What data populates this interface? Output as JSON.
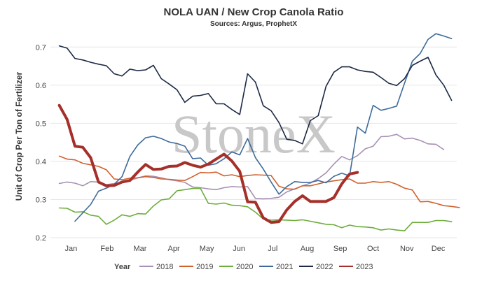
{
  "chart_data": {
    "type": "line",
    "title": "NOLA UAN / New Crop Canola Ratio",
    "subtitle": "Sources: Argus, ProphetX",
    "xlabel": "",
    "ylabel": "Unit of Crop Per Ton of Fertilizer",
    "watermark": "StoneX",
    "legend_title": "Year",
    "legend_position": "bottom",
    "grid": "horizontal",
    "ylim": [
      0.2,
      0.75
    ],
    "yticks": [
      "0.2",
      "0.3",
      "0.4",
      "0.5",
      "0.6",
      "0.7"
    ],
    "xlim": [
      0,
      50
    ],
    "month_ticks": [
      {
        "label": "Jan",
        "x": 2
      },
      {
        "label": "Feb",
        "x": 6.6
      },
      {
        "label": "Mar",
        "x": 10.8
      },
      {
        "label": "Apr",
        "x": 15.1
      },
      {
        "label": "May",
        "x": 19.3
      },
      {
        "label": "Jun",
        "x": 23.4
      },
      {
        "label": "Jul",
        "x": 27.7
      },
      {
        "label": "Aug",
        "x": 32.1
      },
      {
        "label": "Sep",
        "x": 36.3
      },
      {
        "label": "Oct",
        "x": 40.5
      },
      {
        "label": "Nov",
        "x": 44.8
      },
      {
        "label": "Dec",
        "x": 48.8
      }
    ],
    "series": [
      {
        "name": "2018",
        "color": "#a890b4",
        "width": 1.6,
        "points": [
          [
            0.5,
            0.342
          ],
          [
            1.5,
            0.346
          ],
          [
            2.5,
            0.343
          ],
          [
            3.5,
            0.336
          ],
          [
            4.5,
            0.347
          ],
          [
            5.5,
            0.346
          ],
          [
            6.5,
            0.339
          ],
          [
            7.5,
            0.342
          ],
          [
            8.5,
            0.345
          ],
          [
            9.5,
            0.35
          ],
          [
            10.5,
            0.357
          ],
          [
            11.5,
            0.362
          ],
          [
            12.5,
            0.361
          ],
          [
            13.5,
            0.357
          ],
          [
            14.5,
            0.352
          ],
          [
            15.5,
            0.349
          ],
          [
            16.5,
            0.345
          ],
          [
            17.5,
            0.333
          ],
          [
            18.5,
            0.331
          ],
          [
            19.5,
            0.328
          ],
          [
            20.5,
            0.326
          ],
          [
            21.5,
            0.331
          ],
          [
            22.5,
            0.334
          ],
          [
            23.5,
            0.333
          ],
          [
            24.5,
            0.334
          ],
          [
            25.5,
            0.303
          ],
          [
            26.5,
            0.302
          ],
          [
            27.5,
            0.303
          ],
          [
            28.5,
            0.306
          ],
          [
            29.5,
            0.32
          ],
          [
            30.5,
            0.328
          ],
          [
            31.5,
            0.336
          ],
          [
            32.5,
            0.343
          ],
          [
            33.5,
            0.355
          ],
          [
            34.5,
            0.37
          ],
          [
            35.5,
            0.393
          ],
          [
            36.5,
            0.413
          ],
          [
            37.5,
            0.404
          ],
          [
            38.5,
            0.415
          ],
          [
            39.5,
            0.433
          ],
          [
            40.5,
            0.44
          ],
          [
            41.5,
            0.465
          ],
          [
            42.5,
            0.466
          ],
          [
            43.5,
            0.471
          ],
          [
            44.5,
            0.459
          ],
          [
            45.5,
            0.461
          ],
          [
            46.5,
            0.455
          ],
          [
            47.5,
            0.446
          ],
          [
            48.5,
            0.445
          ],
          [
            49.5,
            0.431
          ]
        ]
      },
      {
        "name": "2019",
        "color": "#d0612d",
        "width": 1.6,
        "points": [
          [
            0.5,
            0.414
          ],
          [
            1.5,
            0.406
          ],
          [
            2.5,
            0.404
          ],
          [
            3.5,
            0.395
          ],
          [
            4.5,
            0.391
          ],
          [
            5.5,
            0.387
          ],
          [
            6.5,
            0.378
          ],
          [
            7.5,
            0.354
          ],
          [
            8.5,
            0.352
          ],
          [
            9.5,
            0.356
          ],
          [
            10.5,
            0.357
          ],
          [
            11.5,
            0.36
          ],
          [
            12.5,
            0.358
          ],
          [
            13.5,
            0.354
          ],
          [
            14.5,
            0.353
          ],
          [
            15.5,
            0.351
          ],
          [
            16.5,
            0.35
          ],
          [
            17.5,
            0.36
          ],
          [
            18.5,
            0.371
          ],
          [
            19.5,
            0.37
          ],
          [
            20.5,
            0.372
          ],
          [
            21.5,
            0.362
          ],
          [
            22.5,
            0.365
          ],
          [
            23.5,
            0.36
          ],
          [
            24.5,
            0.363
          ],
          [
            25.5,
            0.365
          ],
          [
            26.5,
            0.364
          ],
          [
            27.5,
            0.363
          ],
          [
            28.5,
            0.335
          ],
          [
            29.5,
            0.328
          ],
          [
            30.5,
            0.327
          ],
          [
            31.5,
            0.336
          ],
          [
            32.5,
            0.336
          ],
          [
            33.5,
            0.341
          ],
          [
            34.5,
            0.346
          ],
          [
            35.5,
            0.349
          ],
          [
            36.5,
            0.352
          ],
          [
            37.5,
            0.354
          ],
          [
            38.5,
            0.343
          ],
          [
            39.5,
            0.343
          ],
          [
            40.5,
            0.347
          ],
          [
            41.5,
            0.345
          ],
          [
            42.5,
            0.347
          ],
          [
            43.5,
            0.34
          ],
          [
            44.5,
            0.33
          ],
          [
            45.5,
            0.325
          ],
          [
            46.5,
            0.294
          ],
          [
            47.5,
            0.295
          ],
          [
            48.5,
            0.29
          ],
          [
            49.5,
            0.284
          ],
          [
            50.5,
            0.282
          ],
          [
            51.5,
            0.279
          ]
        ]
      },
      {
        "name": "2020",
        "color": "#6cad3c",
        "width": 1.6,
        "points": [
          [
            0.5,
            0.278
          ],
          [
            1.5,
            0.277
          ],
          [
            2.5,
            0.267
          ],
          [
            3.5,
            0.268
          ],
          [
            4.5,
            0.259
          ],
          [
            5.5,
            0.256
          ],
          [
            6.5,
            0.235
          ],
          [
            7.5,
            0.246
          ],
          [
            8.5,
            0.26
          ],
          [
            9.5,
            0.256
          ],
          [
            10.5,
            0.263
          ],
          [
            11.5,
            0.262
          ],
          [
            12.5,
            0.283
          ],
          [
            13.5,
            0.299
          ],
          [
            14.5,
            0.302
          ],
          [
            15.5,
            0.323
          ],
          [
            16.5,
            0.326
          ],
          [
            17.5,
            0.329
          ],
          [
            18.5,
            0.329
          ],
          [
            19.5,
            0.29
          ],
          [
            20.5,
            0.288
          ],
          [
            21.5,
            0.291
          ],
          [
            22.5,
            0.285
          ],
          [
            23.5,
            0.284
          ],
          [
            24.5,
            0.281
          ],
          [
            25.5,
            0.267
          ],
          [
            26.5,
            0.249
          ],
          [
            27.5,
            0.246
          ],
          [
            28.5,
            0.247
          ],
          [
            29.5,
            0.246
          ],
          [
            30.5,
            0.245
          ],
          [
            31.5,
            0.247
          ],
          [
            32.5,
            0.243
          ],
          [
            33.5,
            0.239
          ],
          [
            34.5,
            0.235
          ],
          [
            35.5,
            0.234
          ],
          [
            36.5,
            0.226
          ],
          [
            37.5,
            0.233
          ],
          [
            38.5,
            0.229
          ],
          [
            39.5,
            0.228
          ],
          [
            40.5,
            0.226
          ],
          [
            41.5,
            0.22
          ],
          [
            42.5,
            0.223
          ],
          [
            43.5,
            0.22
          ],
          [
            44.5,
            0.218
          ],
          [
            45.5,
            0.24
          ],
          [
            46.5,
            0.24
          ],
          [
            47.5,
            0.24
          ],
          [
            48.5,
            0.245
          ],
          [
            49.5,
            0.245
          ],
          [
            50.5,
            0.242
          ]
        ]
      },
      {
        "name": "2021",
        "color": "#3e6b9a",
        "width": 1.6,
        "points": [
          [
            2.5,
            0.243
          ],
          [
            3.5,
            0.265
          ],
          [
            4.5,
            0.287
          ],
          [
            5.5,
            0.322
          ],
          [
            6.5,
            0.33
          ],
          [
            7.5,
            0.34
          ],
          [
            8.5,
            0.36
          ],
          [
            9.5,
            0.413
          ],
          [
            10.5,
            0.443
          ],
          [
            11.5,
            0.462
          ],
          [
            12.5,
            0.466
          ],
          [
            13.5,
            0.46
          ],
          [
            14.5,
            0.451
          ],
          [
            15.5,
            0.447
          ],
          [
            16.5,
            0.44
          ],
          [
            17.5,
            0.407
          ],
          [
            18.5,
            0.409
          ],
          [
            19.5,
            0.39
          ],
          [
            20.5,
            0.394
          ],
          [
            21.5,
            0.407
          ],
          [
            22.5,
            0.425
          ],
          [
            23.5,
            0.417
          ],
          [
            24.5,
            0.46
          ],
          [
            25.5,
            0.41
          ],
          [
            26.5,
            0.38
          ],
          [
            27.5,
            0.346
          ],
          [
            28.5,
            0.314
          ],
          [
            29.5,
            0.334
          ],
          [
            30.5,
            0.347
          ],
          [
            31.5,
            0.345
          ],
          [
            32.5,
            0.345
          ],
          [
            33.5,
            0.35
          ],
          [
            34.5,
            0.344
          ],
          [
            35.5,
            0.361
          ],
          [
            36.5,
            0.369
          ],
          [
            37.5,
            0.362
          ],
          [
            38.5,
            0.49
          ],
          [
            39.5,
            0.474
          ],
          [
            40.5,
            0.547
          ],
          [
            41.5,
            0.534
          ],
          [
            42.5,
            0.539
          ],
          [
            43.5,
            0.545
          ],
          [
            44.5,
            0.605
          ],
          [
            45.5,
            0.663
          ],
          [
            46.5,
            0.683
          ],
          [
            47.5,
            0.72
          ],
          [
            48.5,
            0.735
          ],
          [
            49.5,
            0.729
          ],
          [
            50.5,
            0.722
          ]
        ]
      },
      {
        "name": "2022",
        "color": "#1c2a45",
        "width": 1.6,
        "points": [
          [
            0.5,
            0.703
          ],
          [
            1.5,
            0.697
          ],
          [
            2.5,
            0.67
          ],
          [
            3.5,
            0.666
          ],
          [
            4.5,
            0.66
          ],
          [
            5.5,
            0.655
          ],
          [
            6.5,
            0.651
          ],
          [
            7.5,
            0.63
          ],
          [
            8.5,
            0.624
          ],
          [
            9.5,
            0.642
          ],
          [
            10.5,
            0.638
          ],
          [
            11.5,
            0.64
          ],
          [
            12.5,
            0.652
          ],
          [
            13.5,
            0.617
          ],
          [
            14.5,
            0.603
          ],
          [
            15.5,
            0.588
          ],
          [
            16.5,
            0.555
          ],
          [
            17.5,
            0.571
          ],
          [
            18.5,
            0.573
          ],
          [
            19.5,
            0.578
          ],
          [
            20.5,
            0.551
          ],
          [
            21.5,
            0.551
          ],
          [
            22.5,
            0.536
          ],
          [
            23.5,
            0.523
          ],
          [
            24.5,
            0.63
          ],
          [
            25.5,
            0.608
          ],
          [
            26.5,
            0.546
          ],
          [
            27.5,
            0.533
          ],
          [
            28.5,
            0.502
          ],
          [
            29.5,
            0.458
          ],
          [
            30.5,
            0.455
          ],
          [
            31.5,
            0.446
          ],
          [
            32.5,
            0.507
          ],
          [
            33.5,
            0.52
          ],
          [
            34.5,
            0.597
          ],
          [
            35.5,
            0.634
          ],
          [
            36.5,
            0.648
          ],
          [
            37.5,
            0.648
          ],
          [
            38.5,
            0.64
          ],
          [
            39.5,
            0.636
          ],
          [
            40.5,
            0.634
          ],
          [
            41.5,
            0.62
          ],
          [
            42.5,
            0.605
          ],
          [
            43.5,
            0.599
          ],
          [
            44.5,
            0.617
          ],
          [
            45.5,
            0.652
          ],
          [
            46.5,
            0.663
          ],
          [
            47.5,
            0.673
          ],
          [
            48.5,
            0.627
          ],
          [
            49.5,
            0.6
          ],
          [
            50.5,
            0.56
          ]
        ]
      },
      {
        "name": "2023",
        "color": "#a5302a",
        "width": 4,
        "points": [
          [
            0.5,
            0.547
          ],
          [
            1.5,
            0.51
          ],
          [
            2.5,
            0.44
          ],
          [
            3.5,
            0.437
          ],
          [
            4.5,
            0.41
          ],
          [
            5.5,
            0.346
          ],
          [
            6.5,
            0.336
          ],
          [
            7.5,
            0.337
          ],
          [
            8.5,
            0.346
          ],
          [
            9.5,
            0.35
          ],
          [
            10.5,
            0.372
          ],
          [
            11.5,
            0.392
          ],
          [
            12.5,
            0.379
          ],
          [
            13.5,
            0.38
          ],
          [
            14.5,
            0.387
          ],
          [
            15.5,
            0.388
          ],
          [
            16.5,
            0.397
          ],
          [
            17.5,
            0.39
          ],
          [
            18.5,
            0.385
          ],
          [
            19.5,
            0.393
          ],
          [
            20.5,
            0.406
          ],
          [
            21.5,
            0.419
          ],
          [
            22.5,
            0.401
          ],
          [
            23.5,
            0.374
          ],
          [
            24.5,
            0.294
          ],
          [
            25.5,
            0.293
          ],
          [
            26.5,
            0.252
          ],
          [
            27.5,
            0.24
          ],
          [
            28.5,
            0.242
          ],
          [
            29.5,
            0.273
          ],
          [
            30.5,
            0.295
          ],
          [
            31.5,
            0.31
          ],
          [
            32.5,
            0.295
          ],
          [
            33.5,
            0.295
          ],
          [
            34.5,
            0.295
          ],
          [
            35.5,
            0.305
          ],
          [
            36.5,
            0.341
          ],
          [
            37.5,
            0.367
          ],
          [
            38.5,
            0.371
          ]
        ]
      }
    ]
  }
}
